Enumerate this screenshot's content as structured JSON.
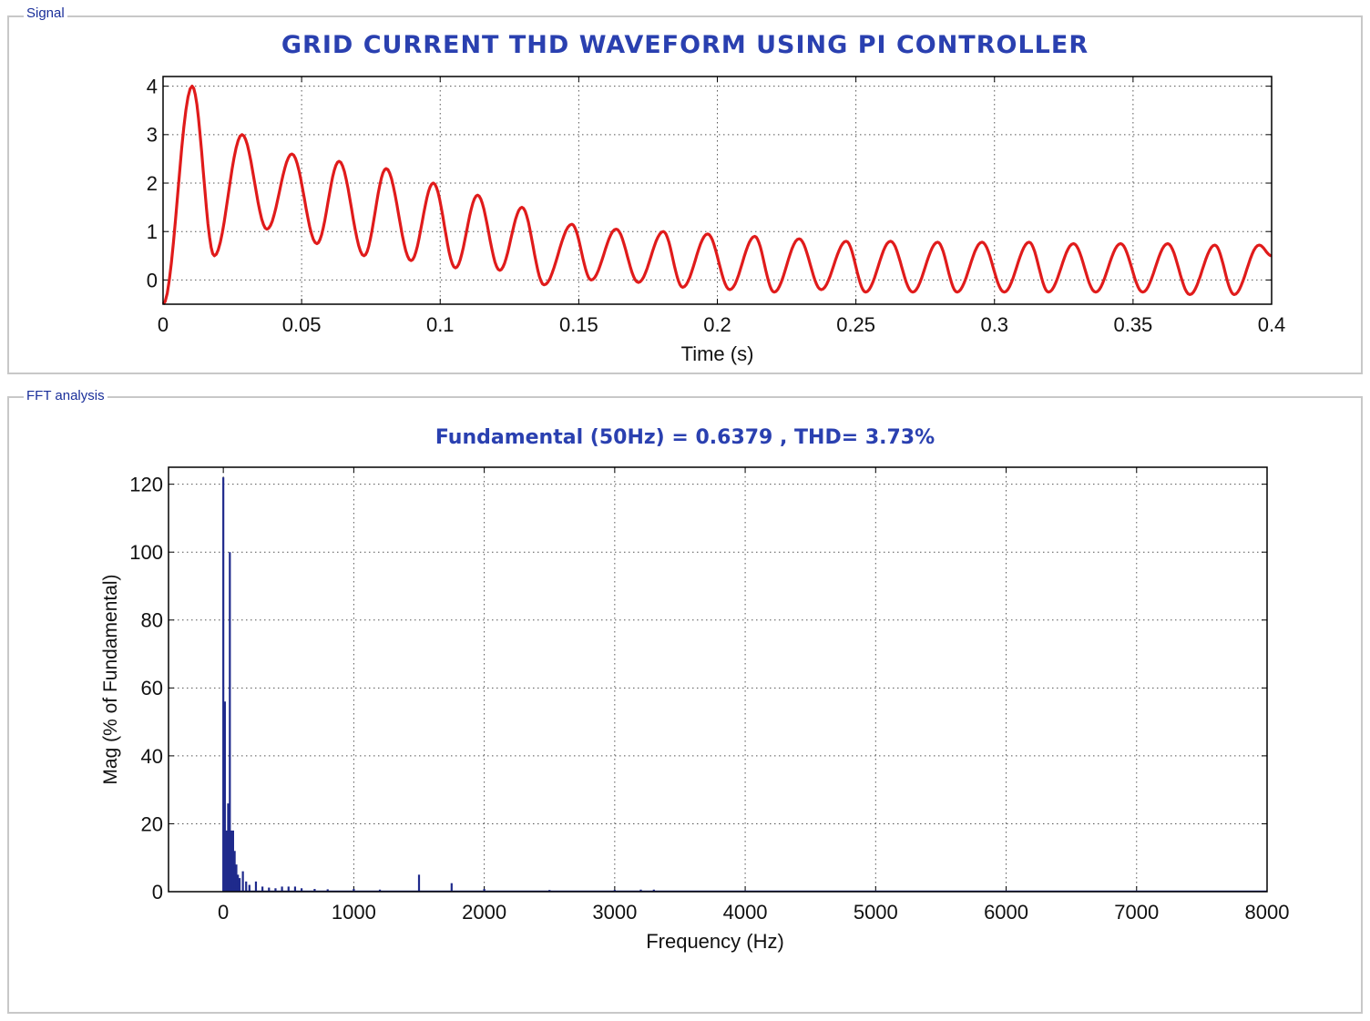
{
  "signal_panel": {
    "label": "Signal"
  },
  "fft_panel": {
    "label": "FFT analysis"
  },
  "colors": {
    "panel_label": "#1a2f9a",
    "title": "#2a40b0",
    "signal_line": "#e01b1b",
    "fft_bars": "#1f2a8c",
    "grid": "#555555"
  },
  "chart_data": [
    {
      "type": "line",
      "title": "GRID CURRENT THD WAVEFORM USING PI CONTROLLER",
      "xlabel": "Time (s)",
      "ylabel": "",
      "xlim": [
        0,
        0.4
      ],
      "ylim": [
        -0.5,
        4.2
      ],
      "xticks": [
        0,
        0.05,
        0.1,
        0.15,
        0.2,
        0.25,
        0.3,
        0.35,
        0.4
      ],
      "xtick_labels": [
        "0",
        "0.05",
        "0.1",
        "0.15",
        "0.2",
        "0.25",
        "0.3",
        "0.35",
        "0.4"
      ],
      "yticks": [
        0,
        1,
        2,
        3,
        4
      ],
      "ytick_labels": [
        "0",
        "1",
        "2",
        "3",
        "4"
      ],
      "grid": true,
      "series": [
        {
          "color": "#e01b1b",
          "x": [
            0,
            0.0105,
            0.0185,
            0.0285,
            0.0375,
            0.0465,
            0.0555,
            0.0635,
            0.0725,
            0.0805,
            0.0895,
            0.0975,
            0.1055,
            0.1135,
            0.1215,
            0.1295,
            0.1375,
            0.1475,
            0.1545,
            0.1635,
            0.1715,
            0.1805,
            0.1875,
            0.1965,
            0.2045,
            0.2135,
            0.2205,
            0.2295,
            0.2375,
            0.2465,
            0.2535,
            0.2625,
            0.2705,
            0.2795,
            0.2865,
            0.2955,
            0.3035,
            0.3125,
            0.3195,
            0.3285,
            0.3365,
            0.3455,
            0.3535,
            0.3625,
            0.3705,
            0.3795,
            0.3865,
            0.3955,
            0.4
          ],
          "y": [
            -0.5,
            4.0,
            0.5,
            3.0,
            1.05,
            2.6,
            0.75,
            2.45,
            0.5,
            2.3,
            0.4,
            2.0,
            0.25,
            1.75,
            0.2,
            1.5,
            -0.1,
            1.15,
            0.0,
            1.05,
            -0.05,
            1.0,
            -0.15,
            0.95,
            -0.2,
            0.9,
            -0.25,
            0.85,
            -0.2,
            0.8,
            -0.25,
            0.8,
            -0.25,
            0.78,
            -0.25,
            0.78,
            -0.25,
            0.78,
            -0.25,
            0.75,
            -0.25,
            0.75,
            -0.25,
            0.75,
            -0.3,
            0.72,
            -0.3,
            0.72,
            0.5
          ]
        }
      ]
    },
    {
      "type": "bar",
      "title": "Fundamental (50Hz) = 0.6379 , THD= 3.73%",
      "xlabel": "Frequency (Hz)",
      "ylabel": "Mag (% of Fundamental)",
      "xlim": [
        -420,
        8000
      ],
      "ylim": [
        0,
        125
      ],
      "xticks": [
        0,
        1000,
        2000,
        3000,
        4000,
        5000,
        6000,
        7000,
        8000
      ],
      "xtick_labels": [
        "0",
        "1000",
        "2000",
        "3000",
        "4000",
        "5000",
        "6000",
        "7000",
        "8000"
      ],
      "yticks": [
        0,
        20,
        40,
        60,
        80,
        100,
        120
      ],
      "ytick_labels": [
        "0",
        "20",
        "40",
        "60",
        "80",
        "100",
        "120"
      ],
      "grid": true,
      "series": [
        {
          "color": "#1f2a8c",
          "x": [
            0,
            12,
            25,
            37,
            50,
            62,
            75,
            87,
            100,
            112,
            125,
            150,
            175,
            200,
            250,
            300,
            350,
            400,
            450,
            500,
            550,
            600,
            700,
            800,
            1000,
            1200,
            1500,
            1750,
            2000,
            2500,
            3000,
            3200,
            3300,
            4000
          ],
          "y": [
            122,
            56,
            18,
            26,
            100,
            18,
            18,
            12,
            8,
            5,
            4,
            6,
            3,
            2,
            3,
            1.5,
            1.2,
            1,
            1.5,
            1.5,
            1.5,
            1,
            0.8,
            0.7,
            0.8,
            0.6,
            5,
            2.5,
            0.8,
            0.5,
            0.5,
            0.6,
            0.6,
            0.3
          ]
        }
      ]
    }
  ]
}
